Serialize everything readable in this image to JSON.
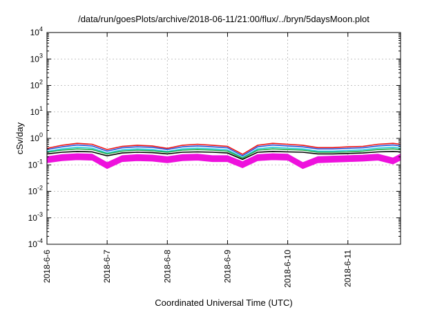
{
  "chart_data": {
    "type": "area",
    "title": "/data/run/goesPlots/archive/2018-06-11/21:00/flux/../bryn/5daysMoon.plot",
    "xlabel": "Coordinated Universal Time (UTC)",
    "ylabel": "cSv/day",
    "yscale": "log",
    "ylim": [
      0.0001,
      10000
    ],
    "xlim": [
      "2018-06-06T00:00",
      "2018-06-11T21:00"
    ],
    "grid": true,
    "y_ticks": [
      {
        "value": 0.0001,
        "base": "10",
        "exp": "-4"
      },
      {
        "value": 0.001,
        "base": "10",
        "exp": "-3"
      },
      {
        "value": 0.01,
        "base": "10",
        "exp": "-2"
      },
      {
        "value": 0.1,
        "base": "10",
        "exp": "-1"
      },
      {
        "value": 1,
        "base": "10",
        "exp": "0"
      },
      {
        "value": 10,
        "base": "10",
        "exp": "1"
      },
      {
        "value": 100,
        "base": "10",
        "exp": "2"
      },
      {
        "value": 1000,
        "base": "10",
        "exp": "3"
      },
      {
        "value": 10000,
        "base": "10",
        "exp": "4"
      }
    ],
    "x_ticks": [
      {
        "value": "2018-06-06T00:00",
        "label": "2018-6-6"
      },
      {
        "value": "2018-06-07T00:00",
        "label": "2018-6-7"
      },
      {
        "value": "2018-06-08T00:00",
        "label": "2018-6-8"
      },
      {
        "value": "2018-06-09T00:00",
        "label": "2018-6-9"
      },
      {
        "value": "2018-06-10T00:00",
        "label": "2018-6-10"
      },
      {
        "value": "2018-06-11T00:00",
        "label": "2018-6-11"
      }
    ],
    "x": [
      "2018-06-06T00:00",
      "2018-06-06T06:00",
      "2018-06-06T12:00",
      "2018-06-06T18:00",
      "2018-06-07T00:00",
      "2018-06-07T06:00",
      "2018-06-07T12:00",
      "2018-06-07T18:00",
      "2018-06-08T00:00",
      "2018-06-08T06:00",
      "2018-06-08T12:00",
      "2018-06-08T18:00",
      "2018-06-09T00:00",
      "2018-06-09T06:00",
      "2018-06-09T12:00",
      "2018-06-09T18:00",
      "2018-06-10T00:00",
      "2018-06-10T06:00",
      "2018-06-10T12:00",
      "2018-06-10T18:00",
      "2018-06-11T00:00",
      "2018-06-11T06:00",
      "2018-06-11T12:00",
      "2018-06-11T18:00",
      "2018-06-11T21:00"
    ],
    "series": [
      {
        "color": "#ee1111",
        "values": [
          0.42,
          0.55,
          0.65,
          0.6,
          0.38,
          0.5,
          0.55,
          0.52,
          0.42,
          0.55,
          0.6,
          0.55,
          0.5,
          0.25,
          0.55,
          0.65,
          0.6,
          0.55,
          0.45,
          0.45,
          0.48,
          0.5,
          0.6,
          0.65,
          0.6
        ]
      },
      {
        "color": "#2255dd",
        "values": [
          0.38,
          0.48,
          0.56,
          0.52,
          0.33,
          0.44,
          0.48,
          0.46,
          0.38,
          0.48,
          0.52,
          0.48,
          0.44,
          0.22,
          0.48,
          0.56,
          0.52,
          0.48,
          0.4,
          0.4,
          0.42,
          0.44,
          0.52,
          0.56,
          0.52
        ]
      },
      {
        "color": "#22ccdd",
        "values": [
          0.32,
          0.4,
          0.46,
          0.43,
          0.28,
          0.37,
          0.4,
          0.38,
          0.32,
          0.4,
          0.43,
          0.4,
          0.37,
          0.19,
          0.4,
          0.46,
          0.43,
          0.4,
          0.33,
          0.33,
          0.35,
          0.37,
          0.43,
          0.46,
          0.43
        ]
      },
      {
        "color": "#22aa44",
        "values": [
          0.3,
          0.36,
          0.4,
          0.38,
          0.26,
          0.33,
          0.36,
          0.34,
          0.3,
          0.36,
          0.38,
          0.36,
          0.33,
          0.18,
          0.36,
          0.4,
          0.38,
          0.36,
          0.3,
          0.3,
          0.31,
          0.33,
          0.38,
          0.4,
          0.38
        ]
      },
      {
        "color": "#000000",
        "values": [
          0.26,
          0.3,
          0.32,
          0.31,
          0.22,
          0.28,
          0.3,
          0.29,
          0.26,
          0.3,
          0.31,
          0.3,
          0.28,
          0.16,
          0.3,
          0.32,
          0.31,
          0.3,
          0.26,
          0.26,
          0.27,
          0.28,
          0.31,
          0.32,
          0.31
        ]
      },
      {
        "color": "#ee11dd",
        "values": [
          0.2,
          0.24,
          0.26,
          0.25,
          0.12,
          0.22,
          0.24,
          0.23,
          0.2,
          0.24,
          0.25,
          0.22,
          0.22,
          0.13,
          0.24,
          0.26,
          0.25,
          0.12,
          0.2,
          0.21,
          0.22,
          0.23,
          0.25,
          0.18,
          0.25
        ]
      }
    ]
  }
}
